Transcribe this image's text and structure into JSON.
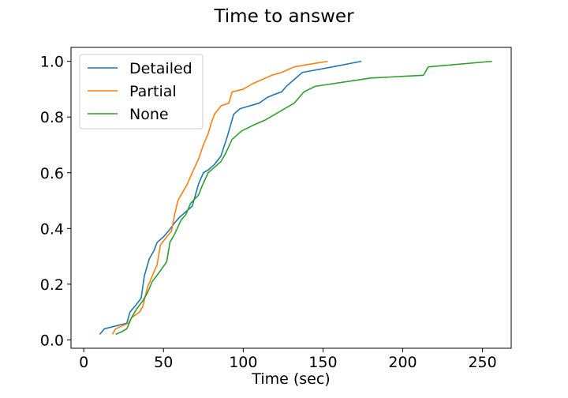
{
  "chart_data": {
    "type": "line",
    "title": "Time to answer",
    "xlabel": "Time (sec)",
    "ylabel": "",
    "xlim": [
      -8,
      268
    ],
    "ylim": [
      -0.03,
      1.05
    ],
    "xticks": [
      0,
      50,
      100,
      150,
      200,
      250
    ],
    "yticks": [
      0.0,
      0.2,
      0.4,
      0.6,
      0.8,
      1.0
    ],
    "xtick_labels": [
      "0",
      "50",
      "100",
      "150",
      "200",
      "250"
    ],
    "ytick_labels": [
      "0.0",
      "0.2",
      "0.4",
      "0.6",
      "0.8",
      "1.0"
    ],
    "grid": false,
    "legend_position": "top-left",
    "series": [
      {
        "name": "Detailed",
        "color": "#1f77b4",
        "x": [
          10,
          13,
          27,
          29,
          32,
          36,
          38,
          41,
          44,
          46,
          50,
          53,
          57,
          60,
          64,
          68,
          70,
          72,
          75,
          78,
          82,
          86,
          90,
          94,
          98,
          110,
          115,
          119,
          124,
          127,
          137,
          156,
          174
        ],
        "y": [
          0.02,
          0.04,
          0.06,
          0.1,
          0.12,
          0.15,
          0.23,
          0.29,
          0.32,
          0.35,
          0.37,
          0.39,
          0.42,
          0.44,
          0.46,
          0.48,
          0.52,
          0.56,
          0.6,
          0.61,
          0.63,
          0.66,
          0.73,
          0.81,
          0.83,
          0.85,
          0.87,
          0.88,
          0.89,
          0.91,
          0.96,
          0.98,
          1.0
        ]
      },
      {
        "name": "Partial",
        "color": "#ff7f0e",
        "x": [
          18,
          20,
          28,
          30,
          35,
          37,
          40,
          43,
          46,
          48,
          52,
          55,
          57,
          59,
          62,
          65,
          68,
          72,
          75,
          78,
          80,
          82,
          86,
          91,
          93,
          100,
          106,
          110,
          118,
          124,
          132,
          142,
          153
        ],
        "y": [
          0.02,
          0.04,
          0.06,
          0.08,
          0.1,
          0.12,
          0.19,
          0.23,
          0.27,
          0.34,
          0.37,
          0.39,
          0.45,
          0.5,
          0.53,
          0.56,
          0.6,
          0.65,
          0.7,
          0.74,
          0.78,
          0.81,
          0.84,
          0.85,
          0.89,
          0.9,
          0.92,
          0.93,
          0.95,
          0.96,
          0.98,
          0.99,
          1.0
        ]
      },
      {
        "name": "None",
        "color": "#2ca02c",
        "x": [
          20,
          24,
          27,
          30,
          33,
          37,
          40,
          43,
          47,
          52,
          54,
          57,
          61,
          64,
          67,
          72,
          74,
          78,
          82,
          86,
          89,
          93,
          99,
          106,
          114,
          120,
          126,
          132,
          135,
          138,
          145,
          180,
          213,
          216,
          256
        ],
        "y": [
          0.02,
          0.03,
          0.04,
          0.08,
          0.11,
          0.14,
          0.17,
          0.21,
          0.24,
          0.28,
          0.35,
          0.38,
          0.43,
          0.45,
          0.49,
          0.52,
          0.55,
          0.6,
          0.62,
          0.64,
          0.67,
          0.72,
          0.75,
          0.77,
          0.79,
          0.81,
          0.83,
          0.85,
          0.87,
          0.89,
          0.91,
          0.94,
          0.95,
          0.98,
          1.0
        ]
      }
    ]
  }
}
